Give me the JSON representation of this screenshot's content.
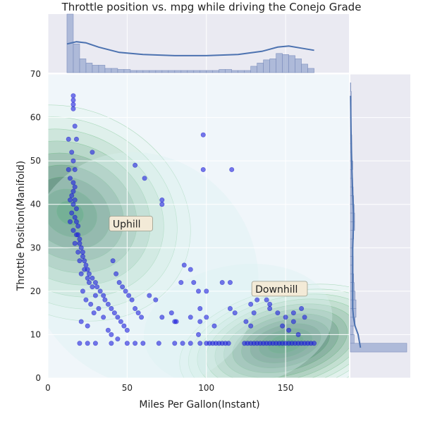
{
  "chart_data": {
    "type": "scatter",
    "title": "Throttle position vs. mpg while driving the Conejo Grade",
    "xlabel": "Miles Per Gallon(Instant)",
    "ylabel": "Throttle Position(Manifold)",
    "xlim": [
      0,
      190
    ],
    "ylim": [
      0,
      70
    ],
    "x_ticks": [
      0,
      50,
      100,
      150
    ],
    "y_ticks": [
      0,
      10,
      20,
      30,
      40,
      50,
      60,
      70
    ],
    "grid": true,
    "style": "seaborn-darkgrid jointplot with KDE contours and marginal histograms",
    "colors": {
      "background": "#eaeaf2",
      "main_background": "#f0f6fa",
      "points": "#2020e0",
      "histogram": "#9aaad0",
      "kde_line": "#4c72b0",
      "contour": "#2ca25f"
    },
    "annotations": [
      {
        "text": "Uphill",
        "x": 40,
        "y": 35
      },
      {
        "text": "Downhill",
        "x": 130,
        "y": 20
      }
    ],
    "points": [
      [
        16,
        65
      ],
      [
        16,
        64
      ],
      [
        16,
        63
      ],
      [
        16,
        62
      ],
      [
        17,
        58
      ],
      [
        18,
        55
      ],
      [
        13,
        55
      ],
      [
        15,
        52
      ],
      [
        16,
        50
      ],
      [
        17,
        48
      ],
      [
        13,
        48
      ],
      [
        14,
        46
      ],
      [
        16,
        45
      ],
      [
        17,
        44
      ],
      [
        15,
        42
      ],
      [
        14,
        41
      ],
      [
        16,
        40
      ],
      [
        18,
        39
      ],
      [
        15,
        38
      ],
      [
        17,
        37
      ],
      [
        14,
        36
      ],
      [
        19,
        35
      ],
      [
        16,
        34
      ],
      [
        18,
        33
      ],
      [
        20,
        32
      ],
      [
        17,
        31
      ],
      [
        21,
        30
      ],
      [
        19,
        29
      ],
      [
        22,
        28
      ],
      [
        20,
        27
      ],
      [
        24,
        26
      ],
      [
        23,
        25
      ],
      [
        21,
        24
      ],
      [
        25,
        23
      ],
      [
        26,
        22
      ],
      [
        28,
        21
      ],
      [
        22,
        20
      ],
      [
        30,
        19
      ],
      [
        24,
        18
      ],
      [
        27,
        17
      ],
      [
        32,
        16
      ],
      [
        29,
        15
      ],
      [
        35,
        14
      ],
      [
        21,
        13
      ],
      [
        25,
        12
      ],
      [
        38,
        11
      ],
      [
        40,
        10
      ],
      [
        44,
        9
      ],
      [
        16,
        43
      ],
      [
        17,
        41
      ],
      [
        18,
        36
      ],
      [
        19,
        33
      ],
      [
        20,
        31
      ],
      [
        22,
        29
      ],
      [
        23,
        27
      ],
      [
        25,
        25
      ],
      [
        26,
        24
      ],
      [
        28,
        23
      ],
      [
        30,
        22
      ],
      [
        31,
        21
      ],
      [
        33,
        20
      ],
      [
        35,
        19
      ],
      [
        36,
        18
      ],
      [
        38,
        17
      ],
      [
        40,
        16
      ],
      [
        42,
        15
      ],
      [
        44,
        14
      ],
      [
        46,
        13
      ],
      [
        48,
        12
      ],
      [
        50,
        11
      ],
      [
        41,
        27
      ],
      [
        43,
        24
      ],
      [
        45,
        22
      ],
      [
        47,
        21
      ],
      [
        49,
        20
      ],
      [
        51,
        19
      ],
      [
        53,
        18
      ],
      [
        55,
        16
      ],
      [
        57,
        15
      ],
      [
        59,
        14
      ],
      [
        28,
        52
      ],
      [
        55,
        49
      ],
      [
        61,
        46
      ],
      [
        72,
        40
      ],
      [
        72,
        41
      ],
      [
        98,
        56
      ],
      [
        98,
        48
      ],
      [
        116,
        48
      ],
      [
        86,
        26
      ],
      [
        90,
        25
      ],
      [
        84,
        22
      ],
      [
        92,
        22
      ],
      [
        110,
        22
      ],
      [
        115,
        22
      ],
      [
        95,
        20
      ],
      [
        100,
        20
      ],
      [
        64,
        19
      ],
      [
        68,
        18
      ],
      [
        78,
        15
      ],
      [
        72,
        14
      ],
      [
        80,
        13
      ],
      [
        90,
        14
      ],
      [
        96,
        13
      ],
      [
        105,
        12
      ],
      [
        100,
        14
      ],
      [
        115,
        16
      ],
      [
        118,
        15
      ],
      [
        96,
        16
      ],
      [
        81,
        13
      ],
      [
        95,
        10
      ],
      [
        128,
        17
      ],
      [
        132,
        18
      ],
      [
        140,
        16
      ],
      [
        145,
        15
      ],
      [
        150,
        14
      ],
      [
        155,
        13
      ],
      [
        140,
        17
      ],
      [
        138,
        18
      ],
      [
        160,
        16
      ],
      [
        155,
        15
      ],
      [
        162,
        14
      ],
      [
        130,
        15
      ],
      [
        148,
        12
      ],
      [
        152,
        11
      ],
      [
        158,
        10
      ],
      [
        128,
        12
      ],
      [
        125,
        13
      ],
      [
        20,
        8
      ],
      [
        25,
        8
      ],
      [
        30,
        8
      ],
      [
        40,
        8
      ],
      [
        50,
        8
      ],
      [
        55,
        8
      ],
      [
        60,
        8
      ],
      [
        70,
        8
      ],
      [
        80,
        8
      ],
      [
        85,
        8
      ],
      [
        90,
        8
      ],
      [
        96,
        8
      ],
      [
        100,
        8
      ],
      [
        102,
        8
      ],
      [
        104,
        8
      ],
      [
        106,
        8
      ],
      [
        108,
        8
      ],
      [
        110,
        8
      ],
      [
        112,
        8
      ],
      [
        114,
        8
      ],
      [
        124,
        8
      ],
      [
        126,
        8
      ],
      [
        128,
        8
      ],
      [
        130,
        8
      ],
      [
        132,
        8
      ],
      [
        134,
        8
      ],
      [
        136,
        8
      ],
      [
        138,
        8
      ],
      [
        140,
        8
      ],
      [
        142,
        8
      ],
      [
        144,
        8
      ],
      [
        146,
        8
      ],
      [
        148,
        8
      ],
      [
        150,
        8
      ],
      [
        152,
        8
      ],
      [
        154,
        8
      ],
      [
        156,
        8
      ],
      [
        158,
        8
      ],
      [
        160,
        8
      ],
      [
        162,
        8
      ],
      [
        164,
        8
      ],
      [
        166,
        8
      ],
      [
        168,
        8
      ]
    ],
    "marginal_x_hist": {
      "bin_edges": [
        12,
        16,
        20,
        24,
        28,
        32,
        36,
        40,
        44,
        48,
        52,
        56,
        60,
        64,
        68,
        72,
        76,
        80,
        84,
        88,
        92,
        96,
        100,
        104,
        108,
        112,
        116,
        120,
        124,
        128,
        132,
        136,
        140,
        144,
        148,
        152,
        156,
        160,
        164,
        168
      ],
      "counts": [
        55,
        27,
        13,
        9,
        7,
        7,
        4,
        4,
        3,
        3,
        2,
        2,
        2,
        2,
        2,
        2,
        2,
        2,
        2,
        2,
        2,
        2,
        2,
        2,
        3,
        3,
        2,
        2,
        2,
        6,
        9,
        12,
        13,
        18,
        17,
        16,
        13,
        8,
        4
      ]
    },
    "marginal_y_hist": {
      "bin_edges": [
        6,
        8,
        10,
        12,
        14,
        16,
        18,
        20,
        22,
        24,
        26,
        28,
        30,
        32,
        34,
        36,
        38,
        40,
        42,
        44,
        46,
        48,
        50,
        52,
        54,
        56,
        58,
        60,
        62,
        64,
        66
      ],
      "counts": [
        120,
        8,
        6,
        10,
        12,
        12,
        10,
        8,
        7,
        6,
        6,
        5,
        6,
        7,
        9,
        9,
        8,
        7,
        6,
        5,
        4,
        5,
        3,
        3,
        3,
        2,
        2,
        2,
        2,
        2,
        1
      ]
    }
  }
}
